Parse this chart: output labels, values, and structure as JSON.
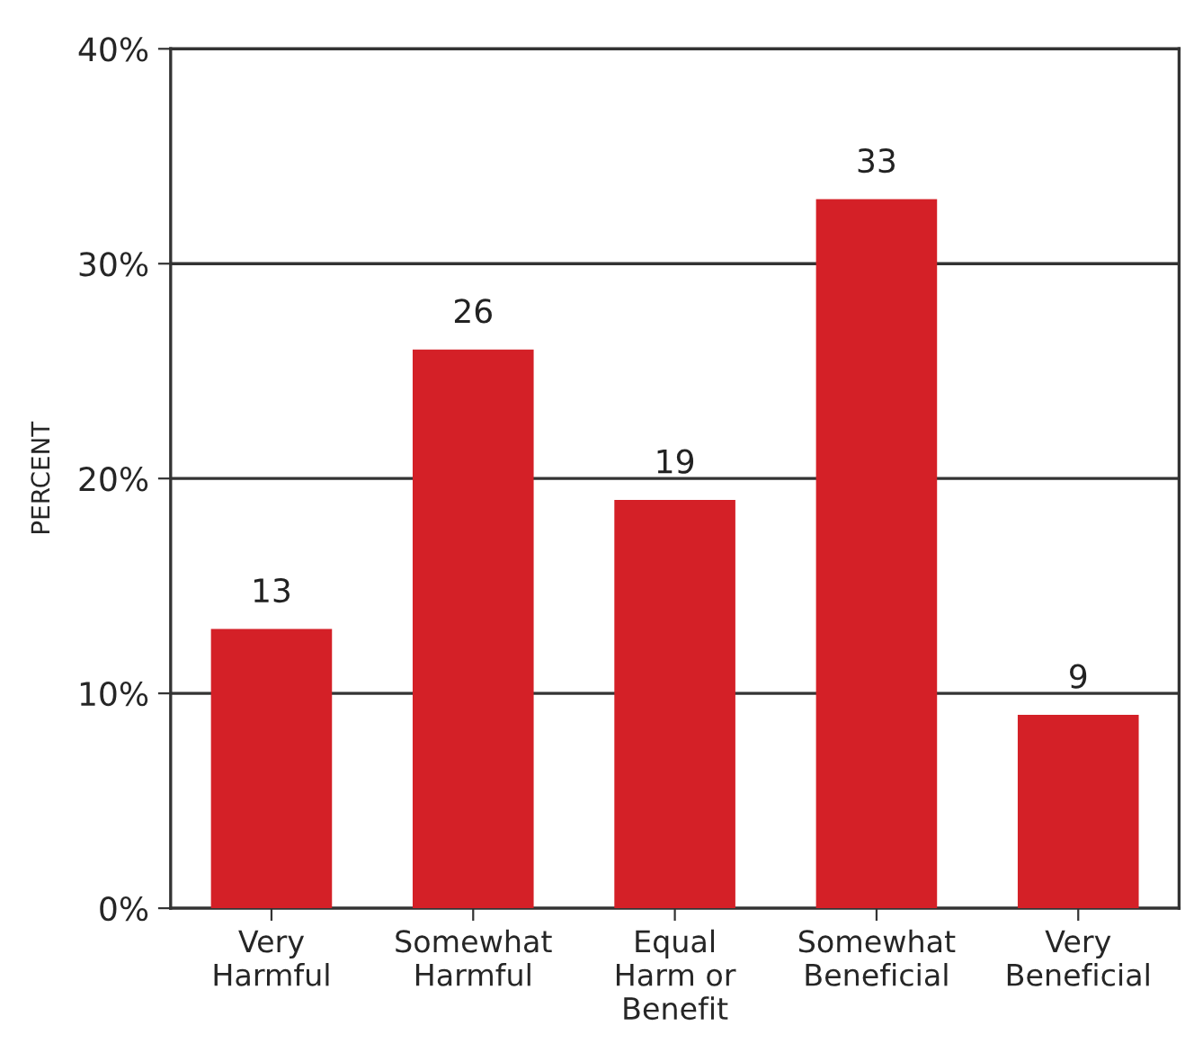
{
  "chart_data": {
    "type": "bar",
    "ylabel": "PERCENT",
    "categories": [
      "Very\nHarmful",
      "Somewhat\nHarmful",
      "Equal\nHarm or\nBenefit",
      "Somewhat\nBeneficial",
      "Very\nBeneficial"
    ],
    "values": [
      13,
      26,
      19,
      33,
      9
    ],
    "color": "#d42027",
    "ylim": [
      0,
      40
    ],
    "yticks": [
      {
        "value": 0,
        "label": "0%"
      },
      {
        "value": 10,
        "label": "10%"
      },
      {
        "value": 20,
        "label": "20%"
      },
      {
        "value": 30,
        "label": "30%"
      },
      {
        "value": 40,
        "label": "40%"
      }
    ],
    "grid": "y",
    "data_labels": true,
    "legend": false
  }
}
